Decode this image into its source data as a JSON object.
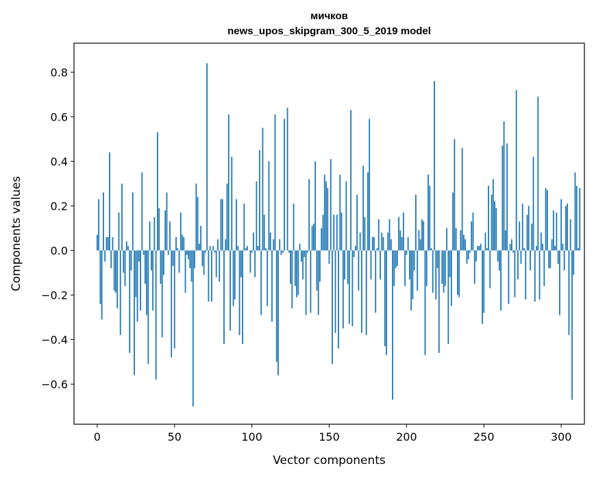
{
  "chart_data": {
    "type": "bar",
    "title": "мичков",
    "subtitle": "news_upos_skipgram_300_5_2019 model",
    "xlabel": "Vector components",
    "ylabel": "Components values",
    "xlim": [
      -15,
      315
    ],
    "ylim": [
      -0.78,
      0.93
    ],
    "xticks": [
      0,
      50,
      100,
      150,
      200,
      250,
      300
    ],
    "yticks": [
      -0.6,
      -0.4,
      -0.2,
      0.0,
      0.2,
      0.4,
      0.6,
      0.8
    ],
    "ytick_labels": [
      "−0.6",
      "−0.4",
      "−0.2",
      "0.0",
      "0.2",
      "0.4",
      "0.6",
      "0.8"
    ],
    "bar_color": "#1f77b4",
    "values": [
      0.07,
      0.23,
      -0.24,
      -0.31,
      0.26,
      -0.05,
      0.06,
      0.06,
      0.44,
      -0.08,
      0.06,
      -0.18,
      -0.19,
      -0.26,
      0.17,
      -0.38,
      0.3,
      -0.1,
      -0.16,
      0.04,
      0.02,
      -0.46,
      -0.09,
      0.26,
      -0.56,
      -0.21,
      -0.32,
      -0.05,
      -0.27,
      0.35,
      -0.02,
      -0.15,
      -0.29,
      -0.51,
      0.13,
      -0.09,
      -0.27,
      0.15,
      -0.58,
      0.53,
      0.19,
      -0.15,
      -0.39,
      -0.11,
      0.18,
      0.26,
      -0.02,
      0.13,
      -0.48,
      -0.07,
      -0.44,
      0.06,
      0.01,
      -0.1,
      0.17,
      0.07,
      0.06,
      -0.19,
      -0.02,
      -0.04,
      -0.08,
      -0.14,
      -0.7,
      -0.08,
      0.3,
      0.24,
      0.03,
      0.11,
      -0.07,
      -0.11,
      -0.01,
      0.84,
      -0.23,
      0.02,
      -0.23,
      0.02,
      -0.01,
      -0.12,
      0.05,
      -0.14,
      0.23,
      0.23,
      -0.42,
      0.05,
      0.3,
      0.61,
      -0.36,
      0.42,
      -0.25,
      -0.22,
      0.23,
      0.02,
      -0.38,
      -0.12,
      -0.42,
      0.21,
      0.01,
      0.02,
      0.0,
      -0.1,
      -0.01,
      0.08,
      -0.12,
      0.31,
      0.02,
      0.45,
      -0.29,
      0.55,
      0.16,
      0.01,
      -0.25,
      0.4,
      0.08,
      -0.32,
      0.05,
      0.61,
      -0.5,
      -0.56,
      0.05,
      -0.02,
      -0.01,
      0.59,
      0.0,
      0.64,
      -0.01,
      -0.15,
      -0.26,
      0.21,
      -0.16,
      -0.21,
      -0.2,
      0.03,
      -0.05,
      -0.13,
      -0.03,
      -0.29,
      -0.01,
      0.32,
      -0.28,
      0.11,
      0.12,
      0.4,
      -0.18,
      -0.29,
      -0.14,
      0.1,
      0.16,
      0.34,
      0.31,
      0.28,
      -0.06,
      0.41,
      -0.51,
      0.16,
      -0.37,
      0.16,
      -0.44,
      0.34,
      0.17,
      -0.35,
      -0.13,
      0.31,
      -0.15,
      -0.33,
      0.63,
      -0.34,
      -0.03,
      0.02,
      0.25,
      -0.18,
      0.08,
      -0.37,
      0.38,
      0.15,
      -0.38,
      0.35,
      0.59,
      -0.13,
      0.06,
      0.06,
      -0.28,
      0.01,
      0.14,
      -0.13,
      0.08,
      0.06,
      -0.43,
      -0.47,
      0.08,
      0.14,
      0.05,
      -0.67,
      -0.16,
      -0.08,
      -0.07,
      0.15,
      0.09,
      0.06,
      0.17,
      -0.16,
      -0.02,
      0.06,
      -0.13,
      -0.27,
      -0.22,
      -0.09,
      0.25,
      -0.18,
      0.09,
      0.05,
      0.14,
      0.13,
      -0.47,
      -0.16,
      0.34,
      0.29,
      0.01,
      -0.19,
      0.76,
      -0.22,
      -0.08,
      -0.46,
      0.0,
      -0.15,
      -0.19,
      -0.16,
      0.1,
      -0.42,
      -0.12,
      -0.25,
      0.26,
      0.5,
      0.1,
      -0.2,
      -0.21,
      0.09,
      0.46,
      0.07,
      0.05,
      -0.06,
      -0.04,
      -0.01,
      0.13,
      0.17,
      -0.15,
      -0.05,
      0.02,
      0.02,
      0.03,
      -0.33,
      -0.28,
      0.08,
      0.01,
      0.29,
      -0.17,
      0.25,
      0.32,
      0.22,
      0.19,
      -0.05,
      -0.09,
      -0.27,
      0.47,
      0.58,
      0.09,
      0.48,
      -0.24,
      0.03,
      0.05,
      -0.01,
      -0.21,
      0.72,
      -0.13,
      0.13,
      -0.06,
      0.21,
      0.01,
      -0.22,
      0.16,
      0.2,
      -0.09,
      0.12,
      0.42,
      -0.23,
      0.02,
      0.69,
      -0.22,
      0.08,
      0.03,
      -0.16,
      0.28,
      0.27,
      -0.08,
      -0.08,
      0.05,
      0.18,
      0.02,
      0.17,
      -0.06,
      -0.29,
      0.23,
      0.03,
      -0.09,
      0.2,
      0.21,
      -0.38,
      0.14,
      -0.67,
      -0.11,
      0.35,
      0.29,
      0.01,
      0.28
    ],
    "grid": false,
    "legend": "none"
  }
}
